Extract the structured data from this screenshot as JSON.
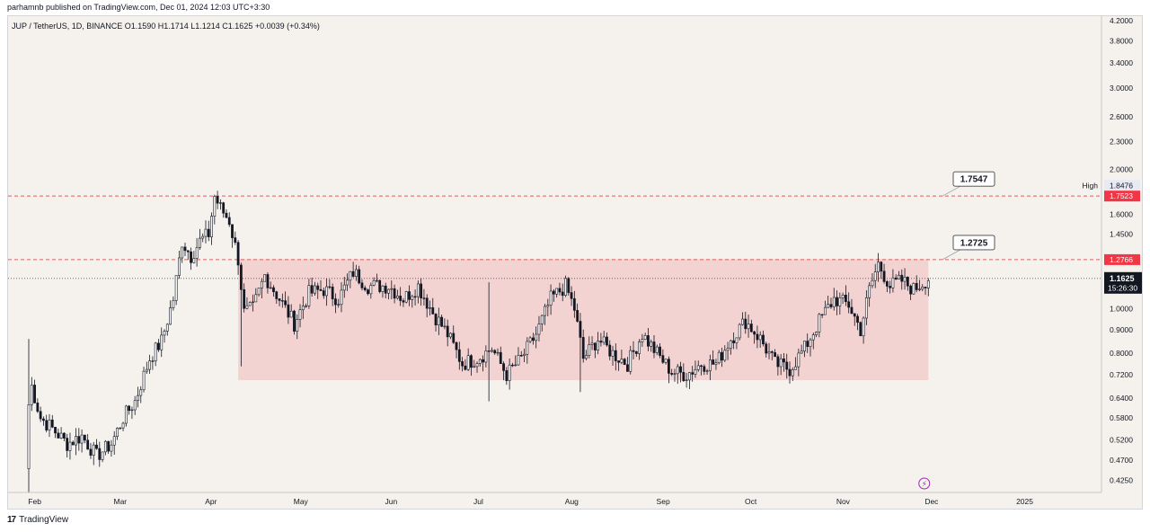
{
  "header": {
    "published": "parhamnb published on TradingView.com, Dec 01, 2024 12:03 UTC+3:30"
  },
  "symbol": {
    "line": "JUP / TetherUS, 1D, BINANCE  O1.1590  H1.1714  L1.1214  C1.1625  +0.0039 (+0.34%)"
  },
  "footer": {
    "brand": "TradingView",
    "logo_glyph": "17"
  },
  "colors": {
    "up": "#ffffff",
    "down": "#131722",
    "zone": "#f3cfcd",
    "level": "#e35d5d",
    "price_badge": "#131722",
    "level_badge": "#f23645"
  },
  "chart_data": {
    "type": "candlestick",
    "price_scale": "log",
    "ylim": [
      0.4,
      4.2
    ],
    "x_ticks": [
      "Feb",
      "Mar",
      "Apr",
      "May",
      "Jun",
      "Jul",
      "Aug",
      "Sep",
      "Oct",
      "Nov",
      "Dec",
      "2025"
    ],
    "y_ticks": [
      "4.2000",
      "3.8000",
      "3.4000",
      "3.0000",
      "2.6000",
      "2.3000",
      "2.0000",
      "1.8476",
      "1.6000",
      "1.4500",
      "1.2766",
      "1.1625",
      "1.0000",
      "0.9000",
      "0.8000",
      "0.7200",
      "0.6400",
      "0.5800",
      "0.5200",
      "0.4700",
      "0.4250"
    ],
    "current": {
      "price": "1.1625",
      "countdown": "15:26:30"
    },
    "high": {
      "label": "High",
      "value": "1.8476"
    },
    "levels": [
      {
        "value": 1.7523,
        "badge": "1.7523",
        "callout": "1.7547"
      },
      {
        "value": 1.2766,
        "badge": "1.2766",
        "callout": "1.2725"
      }
    ],
    "zone": {
      "top": 1.28,
      "bottom": 0.7,
      "start": "2024-04-11",
      "end": "2024-12-01"
    },
    "anchors": [
      [
        "2024-01-31",
        0.62
      ],
      [
        "2024-02-01",
        0.68
      ],
      [
        "2024-02-04",
        0.58
      ],
      [
        "2024-02-08",
        0.55
      ],
      [
        "2024-02-13",
        0.51
      ],
      [
        "2024-02-18",
        0.53
      ],
      [
        "2024-02-23",
        0.48
      ],
      [
        "2024-02-28",
        0.51
      ],
      [
        "2024-03-03",
        0.58
      ],
      [
        "2024-03-07",
        0.63
      ],
      [
        "2024-03-12",
        0.78
      ],
      [
        "2024-03-16",
        0.85
      ],
      [
        "2024-03-20",
        1.05
      ],
      [
        "2024-03-23",
        1.4
      ],
      [
        "2024-03-26",
        1.3
      ],
      [
        "2024-03-29",
        1.4
      ],
      [
        "2024-04-01",
        1.45
      ],
      [
        "2024-04-03",
        1.75
      ],
      [
        "2024-04-05",
        1.65
      ],
      [
        "2024-04-08",
        1.55
      ],
      [
        "2024-04-11",
        1.28
      ],
      [
        "2024-04-13",
        0.98
      ],
      [
        "2024-04-16",
        1.0
      ],
      [
        "2024-04-20",
        1.18
      ],
      [
        "2024-04-25",
        1.05
      ],
      [
        "2024-04-30",
        0.93
      ],
      [
        "2024-05-05",
        1.08
      ],
      [
        "2024-05-10",
        1.1
      ],
      [
        "2024-05-15",
        1.05
      ],
      [
        "2024-05-20",
        1.2
      ],
      [
        "2024-05-25",
        1.12
      ],
      [
        "2024-06-01",
        1.12
      ],
      [
        "2024-06-06",
        1.05
      ],
      [
        "2024-06-11",
        1.12
      ],
      [
        "2024-06-16",
        0.98
      ],
      [
        "2024-06-21",
        0.88
      ],
      [
        "2024-06-26",
        0.76
      ],
      [
        "2024-07-01",
        0.78
      ],
      [
        "2024-07-06",
        0.82
      ],
      [
        "2024-07-11",
        0.72
      ],
      [
        "2024-07-16",
        0.78
      ],
      [
        "2024-07-21",
        0.88
      ],
      [
        "2024-07-26",
        1.05
      ],
      [
        "2024-07-31",
        1.12
      ],
      [
        "2024-08-03",
        1.0
      ],
      [
        "2024-08-06",
        0.78
      ],
      [
        "2024-08-11",
        0.86
      ],
      [
        "2024-08-16",
        0.8
      ],
      [
        "2024-08-21",
        0.76
      ],
      [
        "2024-08-26",
        0.88
      ],
      [
        "2024-08-31",
        0.8
      ],
      [
        "2024-09-05",
        0.73
      ],
      [
        "2024-09-10",
        0.72
      ],
      [
        "2024-09-15",
        0.76
      ],
      [
        "2024-09-20",
        0.76
      ],
      [
        "2024-09-25",
        0.86
      ],
      [
        "2024-09-30",
        0.94
      ],
      [
        "2024-10-05",
        0.86
      ],
      [
        "2024-10-10",
        0.76
      ],
      [
        "2024-10-15",
        0.74
      ],
      [
        "2024-10-20",
        0.82
      ],
      [
        "2024-10-25",
        0.94
      ],
      [
        "2024-10-30",
        1.05
      ],
      [
        "2024-11-04",
        1.02
      ],
      [
        "2024-11-08",
        0.9
      ],
      [
        "2024-11-11",
        1.1
      ],
      [
        "2024-11-14",
        1.25
      ],
      [
        "2024-11-18",
        1.12
      ],
      [
        "2024-11-22",
        1.15
      ],
      [
        "2024-11-26",
        1.1
      ],
      [
        "2024-12-01",
        1.1625
      ]
    ]
  }
}
